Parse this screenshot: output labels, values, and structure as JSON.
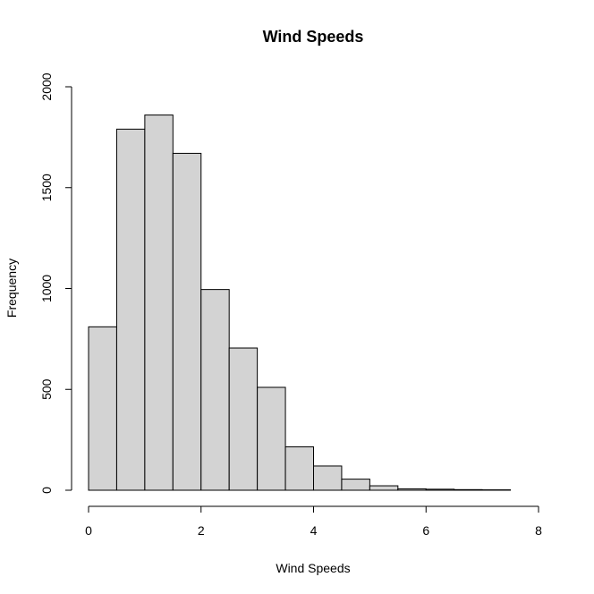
{
  "chart_data": {
    "type": "bar",
    "title": "Wind Speeds",
    "xlabel": "Wind Speeds",
    "ylabel": "Frequency",
    "bins": [
      {
        "start": 0.0,
        "end": 0.5,
        "value": 810
      },
      {
        "start": 0.5,
        "end": 1.0,
        "value": 1790
      },
      {
        "start": 1.0,
        "end": 1.5,
        "value": 1860
      },
      {
        "start": 1.5,
        "end": 2.0,
        "value": 1670
      },
      {
        "start": 2.0,
        "end": 2.5,
        "value": 995
      },
      {
        "start": 2.5,
        "end": 3.0,
        "value": 705
      },
      {
        "start": 3.0,
        "end": 3.5,
        "value": 510
      },
      {
        "start": 3.5,
        "end": 4.0,
        "value": 215
      },
      {
        "start": 4.0,
        "end": 4.5,
        "value": 120
      },
      {
        "start": 4.5,
        "end": 5.0,
        "value": 55
      },
      {
        "start": 5.0,
        "end": 5.5,
        "value": 22
      },
      {
        "start": 5.5,
        "end": 6.0,
        "value": 7
      },
      {
        "start": 6.0,
        "end": 6.5,
        "value": 5
      },
      {
        "start": 6.5,
        "end": 7.0,
        "value": 3
      },
      {
        "start": 7.0,
        "end": 7.5,
        "value": 2
      }
    ],
    "xlim": [
      0,
      8
    ],
    "ylim": [
      0,
      2000
    ],
    "x_ticks": [
      0,
      2,
      4,
      6,
      8
    ],
    "y_ticks": [
      0,
      500,
      1000,
      1500,
      2000
    ],
    "bar_color": "#d3d3d3",
    "grid": false,
    "legend": "none"
  }
}
